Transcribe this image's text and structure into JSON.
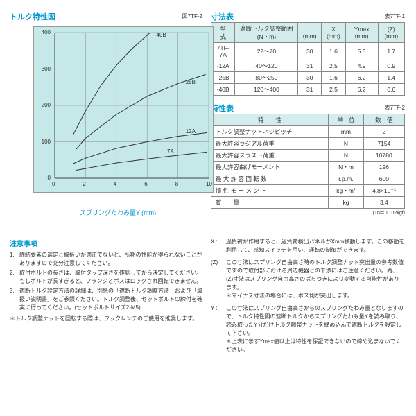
{
  "chart": {
    "title": "トルク特性図",
    "fig_label": "図7TF-2",
    "type": "line",
    "xlabel": "スプリングたわみ量Y (mm)",
    "ylabel": "遮断トルク (N・m)",
    "xlim": [
      0,
      10
    ],
    "ylim": [
      0,
      400
    ],
    "xticks": [
      0,
      2,
      4,
      6,
      8,
      10
    ],
    "yticks": [
      0,
      100,
      200,
      300,
      400
    ],
    "background_color": "#c5e8e8",
    "grid_color": "#888888",
    "axis_color": "#444444",
    "line_color": "#333333",
    "line_width": 1,
    "series": [
      {
        "label": "40B",
        "points": [
          [
            1.2,
            120
          ],
          [
            2,
            185
          ],
          [
            3,
            255
          ],
          [
            4,
            310
          ],
          [
            5,
            355
          ],
          [
            6.2,
            400
          ]
        ]
      },
      {
        "label": "25B",
        "points": [
          [
            1.4,
            80
          ],
          [
            2,
            110
          ],
          [
            4,
            175
          ],
          [
            6,
            225
          ],
          [
            8,
            260
          ],
          [
            9.8,
            285
          ]
        ]
      },
      {
        "label": "12A",
        "points": [
          [
            1.2,
            40
          ],
          [
            2,
            55
          ],
          [
            4,
            82
          ],
          [
            6,
            100
          ],
          [
            8,
            115
          ],
          [
            9.9,
            125
          ]
        ]
      },
      {
        "label": "7A",
        "points": [
          [
            1.4,
            22
          ],
          [
            4,
            42
          ],
          [
            7,
            58
          ],
          [
            9.9,
            72
          ]
        ]
      }
    ],
    "series_label_pos": [
      [
        6.6,
        395,
        "40B"
      ],
      [
        8.5,
        265,
        "25B"
      ],
      [
        8.5,
        130,
        "12A"
      ],
      [
        7.3,
        75,
        "7A"
      ]
    ]
  },
  "dim_table": {
    "title": "寸法表",
    "fig_label": "表7TF-1",
    "headers": [
      "型　式",
      "遮断トルク調整範囲 (N・m)",
      "L (mm)",
      "X (mm)",
      "Ymax (mm)",
      "(Z) (mm)"
    ],
    "rows": [
      [
        "7TF-7A",
        "22～70",
        "30",
        "1.6",
        "5.3",
        "1.7"
      ],
      [
        "-12A",
        "40～120",
        "31",
        "2.5",
        "4.9",
        "0.9"
      ],
      [
        "-25B",
        "80～250",
        "30",
        "1.6",
        "6.2",
        "1.4"
      ],
      [
        "-40B",
        "120～400",
        "31",
        "2.5",
        "6.2",
        "0.6"
      ]
    ]
  },
  "char_table": {
    "title": "特性表",
    "fig_label": "表7TF-2",
    "headers": [
      "特　　性",
      "単　位",
      "数　値"
    ],
    "rows": [
      [
        "トルク調整ナットネジピッチ",
        "mm",
        "2"
      ],
      [
        "最大許容ラジアル荷重",
        "N",
        "7154"
      ],
      [
        "最大許容スラスト荷重",
        "N",
        "10780"
      ],
      [
        "最大許容曲げモーメント",
        "N・m",
        "196"
      ],
      [
        "最 大 許 容 回 転 数",
        "r.p.m.",
        "600"
      ],
      [
        "慣 性 モ ー メ ン ト",
        "kg・m²",
        "4.8×10⁻³"
      ],
      [
        "質　　量",
        "kg",
        "3.4"
      ]
    ],
    "subnote": "(1N≒0.102kgf)"
  },
  "notes": {
    "title": "注意事項",
    "items": [
      {
        "n": "1.",
        "t": "締結要素の選定と取扱いが適正でないと、所期の性能が得られないことがありますので充分注意してください。"
      },
      {
        "n": "2.",
        "t": "取付ボルトの長さは、取付タップ深さを確認してから決定してください。もしボルトが長すぎると、フランジとボスはロックされ回転できません。"
      },
      {
        "n": "3.",
        "t": "遮断トルク設定方法の詳細は、別紙の「遮断トルク調整方法」および「取扱い説明書」をご参照ください。トルク調整後、セットボルトの締付を確実に行ってください。(セットボルトサイズ2-M5)"
      }
    ],
    "footnote": "＊トルク調整ナットを回転する際は、フックレンチのご使用を推奨します。"
  },
  "xyz": [
    {
      "k": "X :",
      "t": "過負荷が作用すると、過負荷検出パネルがXmm移動します。この移動を利用して、感知スイッチを用い、運転の制御ができます。"
    },
    {
      "k": "(Z) :",
      "t": "この寸法はスプリング自由高さ時のトルク調整ナット突出量の参考数値ですので取付部における周辺機器との干渉にはご注意ください。尚、(Z)寸法はスプリング自由高さのばらつきにより変動する可能性があります。\n＊マイナス寸法の場合には、ボス側が突出します。"
    },
    {
      "k": "Y :",
      "t": "この寸法はスプリング自由高さからのスプリングたわみ量となりますので、トルク特性図の遮断トルクからスプリングたわみ量Yを読み取り、読み取ったY分だけトルク調整ナットを締め込んで遮断トルクを設定して下さい。\n＊上表に示すYmax値以上は特性を保証できないので締め込まないでください。"
    }
  ]
}
